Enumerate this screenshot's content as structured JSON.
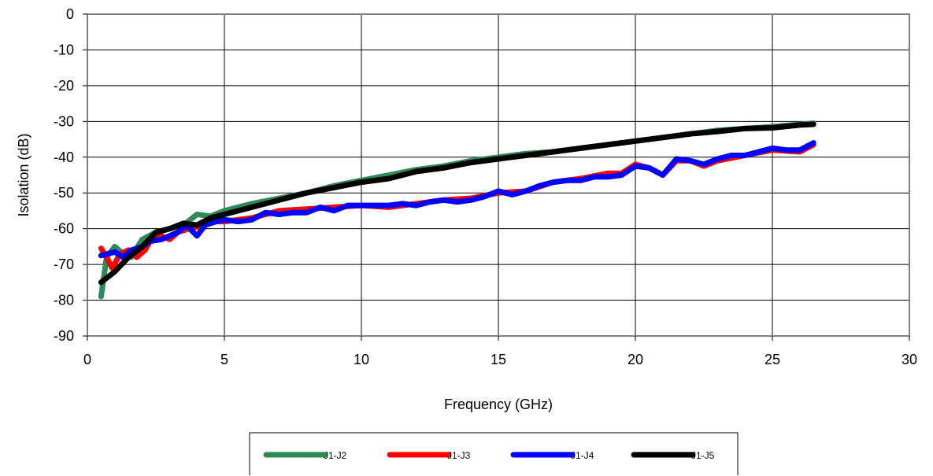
{
  "chart_data": {
    "type": "line",
    "title": "",
    "xlabel": "Frequency (GHz)",
    "ylabel": "Isolation (dB)",
    "xlim": [
      0,
      30
    ],
    "ylim": [
      -90,
      0
    ],
    "xticks": [
      0,
      5,
      10,
      15,
      20,
      25,
      30
    ],
    "yticks": [
      0,
      -10,
      -20,
      -30,
      -40,
      -50,
      -60,
      -70,
      -80,
      -90
    ],
    "grid": true,
    "legend_position": "bottom-center",
    "series": [
      {
        "name": "J1-J2",
        "color": "#2e8b57",
        "points": [
          [
            0.5,
            -79
          ],
          [
            0.7,
            -68
          ],
          [
            1.0,
            -65
          ],
          [
            1.3,
            -67
          ],
          [
            1.6,
            -68
          ],
          [
            2.0,
            -63
          ],
          [
            2.5,
            -61
          ],
          [
            3.0,
            -60
          ],
          [
            3.5,
            -59
          ],
          [
            4.0,
            -56
          ],
          [
            4.5,
            -56.5
          ],
          [
            5.0,
            -55
          ],
          [
            6.0,
            -53
          ],
          [
            7.0,
            -51.5
          ],
          [
            8.0,
            -50
          ],
          [
            9.0,
            -48
          ],
          [
            10.0,
            -46.5
          ],
          [
            11.0,
            -45
          ],
          [
            12.0,
            -43.5
          ],
          [
            13.0,
            -42.5
          ],
          [
            14.0,
            -41
          ],
          [
            15.0,
            -40
          ],
          [
            16.0,
            -39
          ],
          [
            17.0,
            -38.5
          ],
          [
            18.0,
            -37.5
          ],
          [
            19.0,
            -36.5
          ],
          [
            20.0,
            -35.5
          ],
          [
            21.0,
            -34.5
          ],
          [
            22.0,
            -33.5
          ],
          [
            23.0,
            -32.5
          ],
          [
            24.0,
            -32
          ],
          [
            25.0,
            -31.5
          ],
          [
            26.0,
            -30.8
          ],
          [
            26.5,
            -30.5
          ]
        ]
      },
      {
        "name": "J1-J3",
        "color": "#ff0000",
        "points": [
          [
            0.5,
            -65.5
          ],
          [
            0.7,
            -68
          ],
          [
            0.9,
            -71
          ],
          [
            1.2,
            -67
          ],
          [
            1.5,
            -66
          ],
          [
            1.8,
            -68
          ],
          [
            2.1,
            -66
          ],
          [
            2.4,
            -62
          ],
          [
            2.7,
            -62
          ],
          [
            3.0,
            -63
          ],
          [
            3.3,
            -61
          ],
          [
            3.7,
            -60
          ],
          [
            4.0,
            -59.5
          ],
          [
            4.5,
            -58
          ],
          [
            5.0,
            -58
          ],
          [
            6.0,
            -57
          ],
          [
            7.0,
            -55
          ],
          [
            8.0,
            -54.5
          ],
          [
            9.0,
            -54
          ],
          [
            10.0,
            -53.5
          ],
          [
            11.0,
            -54
          ],
          [
            12.0,
            -53
          ],
          [
            13.0,
            -52
          ],
          [
            14.0,
            -51.5
          ],
          [
            15.0,
            -50
          ],
          [
            16.0,
            -49.5
          ],
          [
            17.0,
            -47
          ],
          [
            18.0,
            -46
          ],
          [
            19.0,
            -44.5
          ],
          [
            19.5,
            -44.5
          ],
          [
            20.0,
            -42
          ],
          [
            20.5,
            -43
          ],
          [
            21.0,
            -45
          ],
          [
            21.5,
            -41
          ],
          [
            22.0,
            -41
          ],
          [
            22.5,
            -42.5
          ],
          [
            23.0,
            -41
          ],
          [
            24.0,
            -39.5
          ],
          [
            25.0,
            -38
          ],
          [
            26.0,
            -38.5
          ],
          [
            26.5,
            -36.5
          ]
        ]
      },
      {
        "name": "J1-J4",
        "color": "#0000ff",
        "points": [
          [
            0.5,
            -67.5
          ],
          [
            1.0,
            -66.5
          ],
          [
            1.3,
            -68
          ],
          [
            1.6,
            -66
          ],
          [
            2.0,
            -65
          ],
          [
            2.3,
            -63.5
          ],
          [
            2.7,
            -63
          ],
          [
            3.0,
            -62
          ],
          [
            3.3,
            -61
          ],
          [
            3.6,
            -59
          ],
          [
            4.0,
            -62
          ],
          [
            4.3,
            -59
          ],
          [
            4.7,
            -58
          ],
          [
            5.0,
            -57.5
          ],
          [
            5.5,
            -58
          ],
          [
            6.0,
            -57.5
          ],
          [
            6.5,
            -55.5
          ],
          [
            7.0,
            -56
          ],
          [
            7.5,
            -55.5
          ],
          [
            8.0,
            -55.5
          ],
          [
            8.5,
            -54
          ],
          [
            9.0,
            -55
          ],
          [
            9.5,
            -53.5
          ],
          [
            10.0,
            -53.5
          ],
          [
            10.5,
            -53.5
          ],
          [
            11.0,
            -53.5
          ],
          [
            11.5,
            -53
          ],
          [
            12.0,
            -53.5
          ],
          [
            12.5,
            -52.5
          ],
          [
            13.0,
            -52
          ],
          [
            13.5,
            -52.5
          ],
          [
            14.0,
            -52
          ],
          [
            14.5,
            -51
          ],
          [
            15.0,
            -49.5
          ],
          [
            15.5,
            -50.5
          ],
          [
            16.0,
            -49.5
          ],
          [
            16.5,
            -48
          ],
          [
            17.0,
            -47
          ],
          [
            17.5,
            -46.5
          ],
          [
            18.0,
            -46.5
          ],
          [
            18.5,
            -45.5
          ],
          [
            19.0,
            -45.5
          ],
          [
            19.5,
            -45
          ],
          [
            20.0,
            -42.5
          ],
          [
            20.5,
            -43
          ],
          [
            21.0,
            -45
          ],
          [
            21.5,
            -40.5
          ],
          [
            22.0,
            -41
          ],
          [
            22.5,
            -42
          ],
          [
            23.0,
            -40.5
          ],
          [
            23.5,
            -39.5
          ],
          [
            24.0,
            -39.5
          ],
          [
            24.5,
            -38.5
          ],
          [
            25.0,
            -37.5
          ],
          [
            25.5,
            -38
          ],
          [
            26.0,
            -38
          ],
          [
            26.5,
            -36
          ]
        ]
      },
      {
        "name": "J1-J5",
        "color": "#000000",
        "points": [
          [
            0.5,
            -75
          ],
          [
            1.0,
            -72
          ],
          [
            1.5,
            -68
          ],
          [
            2.0,
            -65
          ],
          [
            2.5,
            -61
          ],
          [
            3.0,
            -60
          ],
          [
            3.5,
            -58.5
          ],
          [
            4.0,
            -59
          ],
          [
            4.5,
            -57
          ],
          [
            5.0,
            -56
          ],
          [
            6.0,
            -54
          ],
          [
            7.0,
            -52
          ],
          [
            8.0,
            -50
          ],
          [
            9.0,
            -48.5
          ],
          [
            10.0,
            -47
          ],
          [
            11.0,
            -46
          ],
          [
            12.0,
            -44
          ],
          [
            13.0,
            -43
          ],
          [
            14.0,
            -41.5
          ],
          [
            15.0,
            -40.5
          ],
          [
            16.0,
            -39.5
          ],
          [
            17.0,
            -38.5
          ],
          [
            18.0,
            -37.5
          ],
          [
            19.0,
            -36.5
          ],
          [
            20.0,
            -35.5
          ],
          [
            21.0,
            -34.5
          ],
          [
            22.0,
            -33.5
          ],
          [
            23.0,
            -32.8
          ],
          [
            24.0,
            -32
          ],
          [
            25.0,
            -31.8
          ],
          [
            26.0,
            -31
          ],
          [
            26.5,
            -30.8
          ]
        ]
      }
    ]
  }
}
